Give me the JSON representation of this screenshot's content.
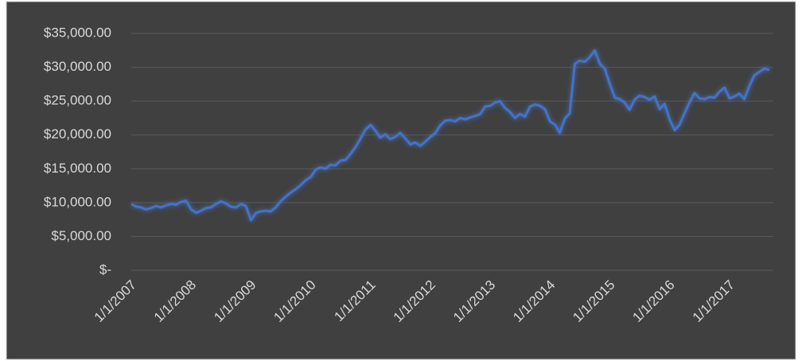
{
  "chart_data": {
    "type": "line",
    "x": [
      "2007-01-01",
      "2007-02-01",
      "2007-03-01",
      "2007-04-01",
      "2007-05-01",
      "2007-06-01",
      "2007-07-01",
      "2007-08-01",
      "2007-09-01",
      "2007-10-01",
      "2007-11-01",
      "2007-12-01",
      "2008-01-01",
      "2008-02-01",
      "2008-03-01",
      "2008-04-01",
      "2008-05-01",
      "2008-06-01",
      "2008-07-01",
      "2008-08-01",
      "2008-09-01",
      "2008-10-01",
      "2008-11-01",
      "2008-12-01",
      "2009-01-01",
      "2009-02-01",
      "2009-03-01",
      "2009-04-01",
      "2009-05-01",
      "2009-06-01",
      "2009-07-01",
      "2009-08-01",
      "2009-09-01",
      "2009-10-01",
      "2009-11-01",
      "2009-12-01",
      "2010-01-01",
      "2010-02-01",
      "2010-03-01",
      "2010-04-01",
      "2010-05-01",
      "2010-06-01",
      "2010-07-01",
      "2010-08-01",
      "2010-09-01",
      "2010-10-01",
      "2010-11-01",
      "2010-12-01",
      "2011-01-01",
      "2011-02-01",
      "2011-03-01",
      "2011-04-01",
      "2011-05-01",
      "2011-06-01",
      "2011-07-01",
      "2011-08-01",
      "2011-09-01",
      "2011-10-01",
      "2011-11-01",
      "2011-12-01",
      "2012-01-01",
      "2012-02-01",
      "2012-03-01",
      "2012-04-01",
      "2012-05-01",
      "2012-06-01",
      "2012-07-01",
      "2012-08-01",
      "2012-09-01",
      "2012-10-01",
      "2012-11-01",
      "2012-12-01",
      "2013-01-01",
      "2013-02-01",
      "2013-03-01",
      "2013-04-01",
      "2013-05-01",
      "2013-06-01",
      "2013-07-01",
      "2013-08-01",
      "2013-09-01",
      "2013-10-01",
      "2013-11-01",
      "2013-12-01",
      "2014-01-01",
      "2014-02-01",
      "2014-03-01",
      "2014-04-01",
      "2014-05-01",
      "2014-06-01",
      "2014-07-01",
      "2014-08-01",
      "2014-09-01",
      "2014-10-01",
      "2014-11-01",
      "2014-12-01",
      "2015-01-01",
      "2015-02-01",
      "2015-03-01",
      "2015-04-01",
      "2015-05-01",
      "2015-06-01",
      "2015-07-01",
      "2015-08-01",
      "2015-09-01",
      "2015-10-01",
      "2015-11-01",
      "2015-12-01",
      "2016-01-01",
      "2016-02-01",
      "2016-03-01",
      "2016-04-01",
      "2016-05-01",
      "2016-06-01",
      "2016-07-01",
      "2016-08-01",
      "2016-09-01",
      "2016-10-01",
      "2016-11-01",
      "2016-12-01",
      "2017-01-01",
      "2017-02-01",
      "2017-03-01",
      "2017-04-01",
      "2017-05-01",
      "2017-06-01",
      "2017-07-01",
      "2017-08-01",
      "2017-09-01"
    ],
    "series": [
      {
        "color": "#4472c4",
        "values": [
          9800,
          9400,
          9300,
          9000,
          9200,
          9500,
          9300,
          9600,
          9800,
          9700,
          10100,
          10300,
          9000,
          8500,
          8800,
          9200,
          9300,
          9800,
          10200,
          9900,
          9400,
          9300,
          9800,
          9500,
          7400,
          8500,
          8700,
          8800,
          8700,
          9300,
          10200,
          10900,
          11500,
          12000,
          12600,
          13300,
          13800,
          14900,
          15200,
          15000,
          15600,
          15500,
          16200,
          16300,
          17200,
          18200,
          19500,
          20800,
          21500,
          20600,
          19600,
          20100,
          19400,
          19700,
          20300,
          19500,
          18600,
          18900,
          18400,
          19000,
          19700,
          20300,
          21400,
          22100,
          22200,
          22000,
          22500,
          22300,
          22600,
          22800,
          23100,
          24200,
          24300,
          24800,
          25000,
          24000,
          23400,
          22500,
          23100,
          22700,
          24200,
          24500,
          24300,
          23800,
          22000,
          21500,
          20300,
          22400,
          23200,
          30500,
          31000,
          30800,
          31500,
          32500,
          30500,
          29800,
          27500,
          25500,
          25300,
          24800,
          23700,
          25200,
          25800,
          25600,
          25200,
          25700,
          23800,
          24600,
          22300,
          20700,
          21500,
          23200,
          24800,
          26200,
          25400,
          25300,
          25600,
          25500,
          26400,
          27000,
          25400,
          25700,
          26100,
          25300,
          27200,
          28800,
          29300,
          29800,
          29600
        ]
      }
    ],
    "xlim": [
      "2007-01-01",
      "2017-09-01"
    ],
    "xticks": [
      {
        "value": "2007-01-01",
        "label": "1/1/2007"
      },
      {
        "value": "2008-01-01",
        "label": "1/1/2008"
      },
      {
        "value": "2009-01-01",
        "label": "1/1/2009"
      },
      {
        "value": "2010-01-01",
        "label": "1/1/2010"
      },
      {
        "value": "2011-01-01",
        "label": "1/1/2011"
      },
      {
        "value": "2012-01-01",
        "label": "1/1/2012"
      },
      {
        "value": "2013-01-01",
        "label": "1/1/2013"
      },
      {
        "value": "2014-01-01",
        "label": "1/1/2014"
      },
      {
        "value": "2015-01-01",
        "label": "1/1/2015"
      },
      {
        "value": "2016-01-01",
        "label": "1/1/2016"
      },
      {
        "value": "2017-01-01",
        "label": "1/1/2017"
      }
    ],
    "ylim": [
      0,
      35000
    ],
    "yticks": [
      {
        "value": 0,
        "label": "$-"
      },
      {
        "value": 5000,
        "label": "$5,000.00"
      },
      {
        "value": 10000,
        "label": "$10,000.00"
      },
      {
        "value": 15000,
        "label": "$15,000.00"
      },
      {
        "value": 20000,
        "label": "$20,000.00"
      },
      {
        "value": 25000,
        "label": "$25,000.00"
      },
      {
        "value": 30000,
        "label": "$30,000.00"
      },
      {
        "value": 35000,
        "label": "$35,000.00"
      }
    ],
    "grid": true
  }
}
